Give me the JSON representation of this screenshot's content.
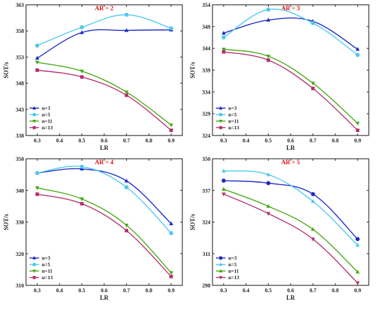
{
  "chart_data": [
    {
      "type": "line",
      "title": "AR = 2",
      "title_color": "#e01010",
      "xlabel": "LR",
      "ylabel": "SOT/s",
      "xlim": [
        0.25,
        0.95
      ],
      "ylim": [
        338,
        363
      ],
      "xticks": [
        "0.3",
        "0.4",
        "0.5",
        "0.6",
        "0.7",
        "0.8",
        "0.9"
      ],
      "yticks": [
        "338",
        "343",
        "348",
        "353",
        "358",
        "363"
      ],
      "x": [
        0.3,
        0.5,
        0.7,
        0.9
      ],
      "legend_position": "bottom-left",
      "series": [
        {
          "name": "n=3",
          "values": [
            352.8,
            357.7,
            358.1,
            358.2
          ],
          "color": "#1c29c8",
          "marker": "triangle-up"
        },
        {
          "name": "n=5",
          "values": [
            355.2,
            358.7,
            361.1,
            358.5
          ],
          "color": "#4dc9ec",
          "marker": "circle"
        },
        {
          "name": "n=11",
          "values": [
            352.0,
            350.3,
            346.3,
            340.0
          ],
          "color": "#48a815",
          "marker": "triangle-down"
        },
        {
          "name": "n=13",
          "values": [
            350.5,
            349.2,
            345.7,
            339.0
          ],
          "color": "#b5306e",
          "marker": "square"
        }
      ]
    },
    {
      "type": "line",
      "title": "AR = 3",
      "title_color": "#e01010",
      "xlabel": "LR",
      "ylabel": "SOT/s",
      "xlim": [
        0.25,
        0.95
      ],
      "ylim": [
        324,
        354
      ],
      "xticks": [
        "0.3",
        "0.4",
        "0.5",
        "0.6",
        "0.7",
        "0.8",
        "0.9"
      ],
      "yticks": [
        "324",
        "329",
        "334",
        "339",
        "344",
        "349",
        "354"
      ],
      "x": [
        0.3,
        0.5,
        0.7,
        0.9
      ],
      "legend_position": "bottom-left",
      "series": [
        {
          "name": "n=3",
          "values": [
            347.5,
            350.5,
            350.2,
            343.8
          ],
          "color": "#1c29c8",
          "marker": "triangle-up"
        },
        {
          "name": "n=5",
          "values": [
            346.5,
            352.9,
            349.8,
            342.5
          ],
          "color": "#4dc9ec",
          "marker": "circle"
        },
        {
          "name": "n=11",
          "values": [
            343.8,
            342.2,
            336.0,
            326.8
          ],
          "color": "#48a815",
          "marker": "triangle-down"
        },
        {
          "name": "n=13",
          "values": [
            343.2,
            341.3,
            334.8,
            325.2
          ],
          "color": "#b5306e",
          "marker": "square"
        }
      ]
    },
    {
      "type": "line",
      "title": "AR = 4",
      "title_color": "#e01010",
      "xlabel": "LR",
      "ylabel": "SOT/s",
      "xlim": [
        0.25,
        0.95
      ],
      "ylim": [
        310,
        350
      ],
      "xticks": [
        "0.3",
        "0.4",
        "0.5",
        "0.6",
        "0.7",
        "0.8",
        "0.9"
      ],
      "yticks": [
        "310",
        "320",
        "330",
        "340",
        "350"
      ],
      "x": [
        0.3,
        0.5,
        0.7,
        0.9
      ],
      "legend_position": "bottom-left",
      "series": [
        {
          "name": "n=3",
          "values": [
            345.5,
            346.8,
            343.0,
            329.5
          ],
          "color": "#1c29c8",
          "marker": "triangle-up"
        },
        {
          "name": "n=5",
          "values": [
            345.5,
            347.5,
            341.0,
            326.5
          ],
          "color": "#4dc9ec",
          "marker": "circle"
        },
        {
          "name": "n=11",
          "values": [
            340.8,
            337.3,
            329.0,
            314.0
          ],
          "color": "#48a815",
          "marker": "triangle-down"
        },
        {
          "name": "n=13",
          "values": [
            338.8,
            335.8,
            327.3,
            312.8
          ],
          "color": "#b5306e",
          "marker": "square"
        }
      ]
    },
    {
      "type": "line",
      "title": "AR = 5",
      "title_color": "#e01010",
      "xlabel": "LR",
      "ylabel": "SOT/s",
      "xlim": [
        0.25,
        0.95
      ],
      "ylim": [
        298,
        350
      ],
      "xticks": [
        "0.3",
        "0.4",
        "0.5",
        "0.6",
        "0.7",
        "0.8",
        "0.9"
      ],
      "yticks": [
        "298",
        "311",
        "324",
        "337",
        "350"
      ],
      "x": [
        0.3,
        0.5,
        0.7,
        0.9
      ],
      "legend_position": "bottom-left",
      "series": [
        {
          "name": "n=3",
          "values": [
            341.0,
            340.0,
            335.5,
            317.0
          ],
          "color": "#1c29c8",
          "marker": "circle"
        },
        {
          "name": "n=5",
          "values": [
            345.0,
            343.5,
            332.5,
            314.5
          ],
          "color": "#4dc9ec",
          "marker": "triangle-up"
        },
        {
          "name": "n=11",
          "values": [
            337.5,
            330.5,
            321.0,
            303.5
          ],
          "color": "#48a815",
          "marker": "triangle-up"
        },
        {
          "name": "n=13",
          "values": [
            335.5,
            327.5,
            317.0,
            299.0
          ],
          "color": "#b5306e",
          "marker": "triangle-down"
        }
      ]
    }
  ]
}
